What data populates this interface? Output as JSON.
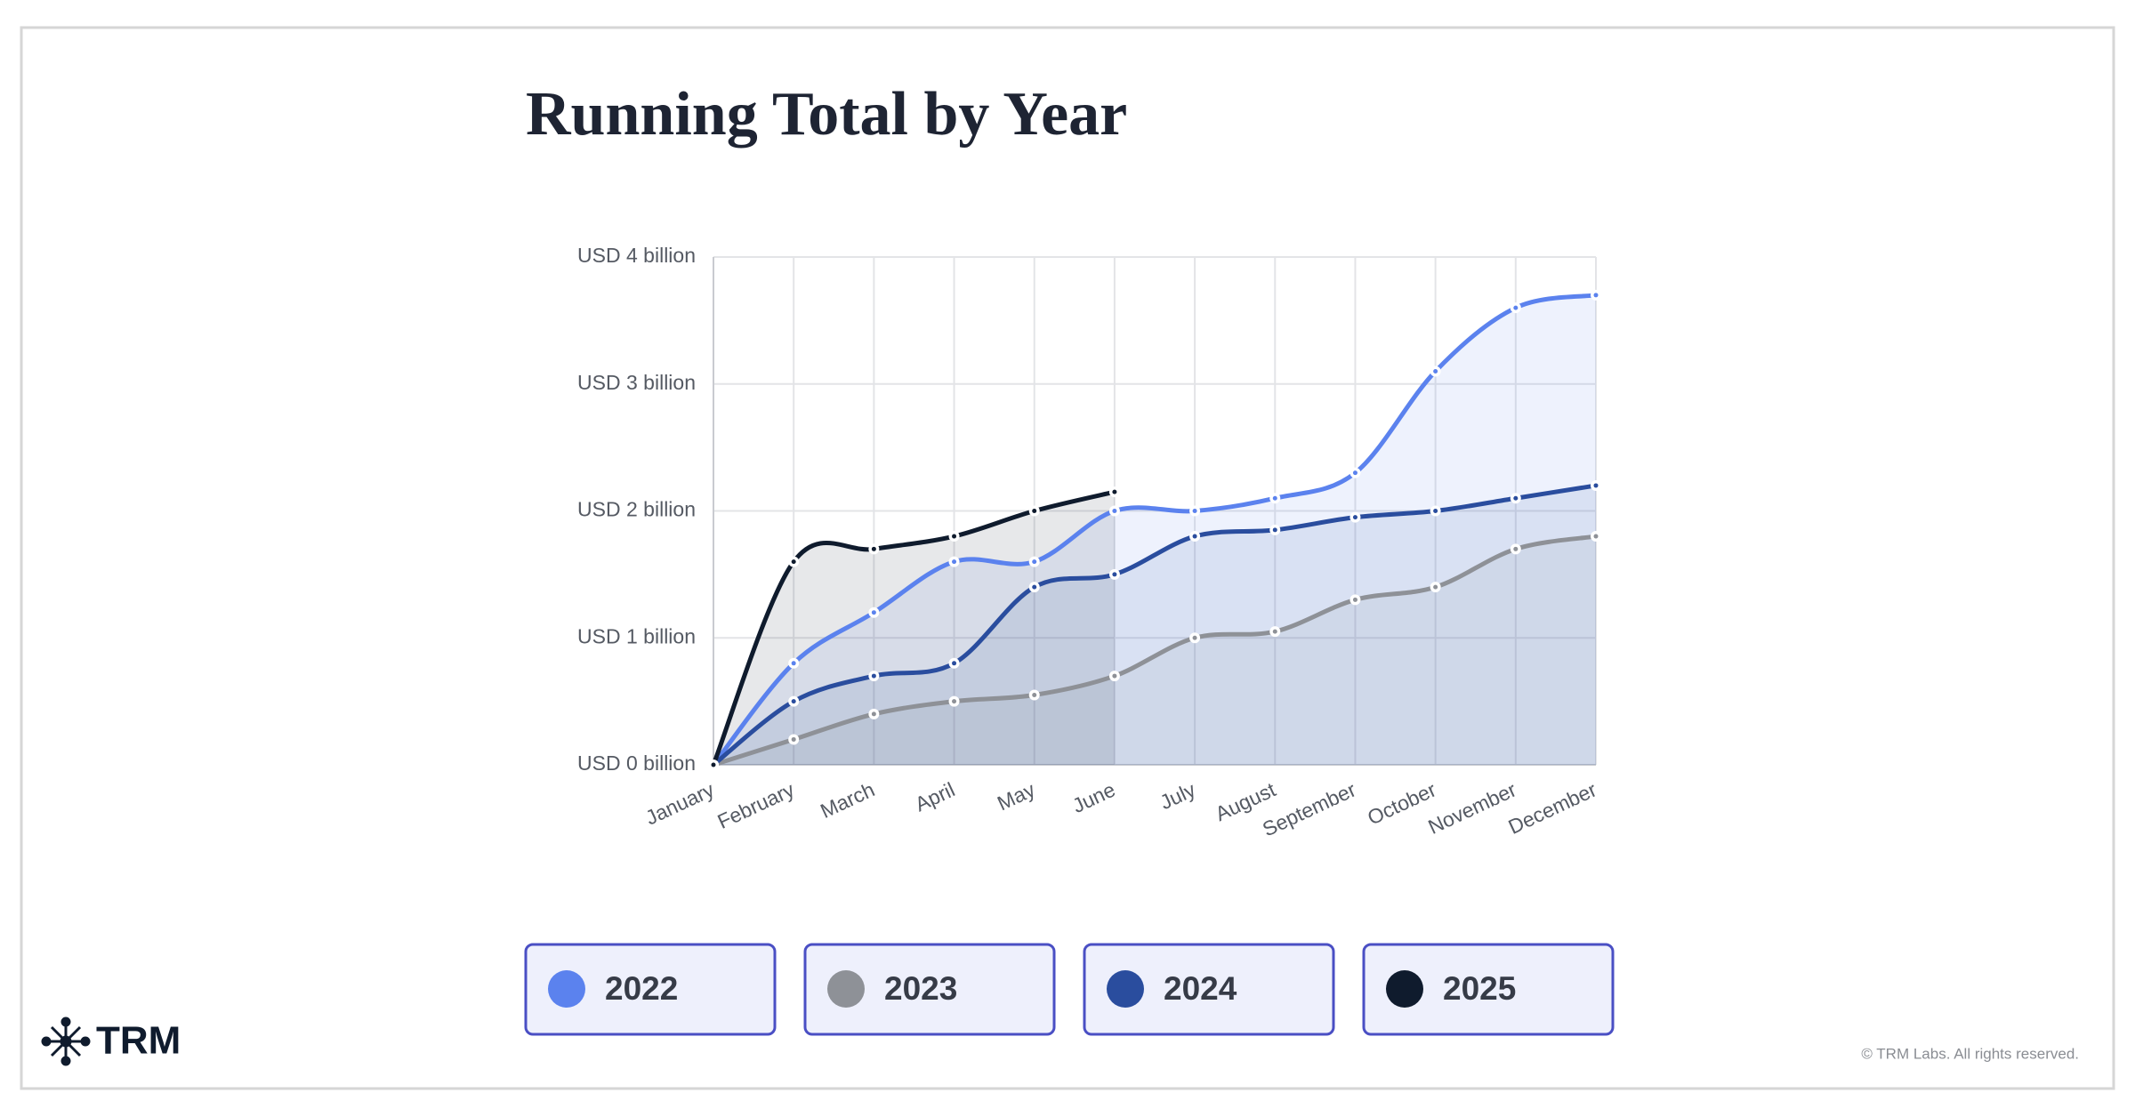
{
  "chart_data": {
    "type": "line",
    "title": "Running Total by Year",
    "categories": [
      "January",
      "February",
      "March",
      "April",
      "May",
      "June",
      "July",
      "August",
      "September",
      "October",
      "November",
      "December"
    ],
    "series": [
      {
        "name": "2022",
        "color": "#5b82ee",
        "values": [
          0,
          0.8,
          1.2,
          1.6,
          1.6,
          2.0,
          2.0,
          2.1,
          2.3,
          3.1,
          3.6,
          3.7
        ]
      },
      {
        "name": "2023",
        "color": "#8e9197",
        "values": [
          0,
          0.2,
          0.4,
          0.5,
          0.55,
          0.7,
          1.0,
          1.05,
          1.3,
          1.4,
          1.7,
          1.8
        ]
      },
      {
        "name": "2024",
        "color": "#2a4d9e",
        "values": [
          0,
          0.5,
          0.7,
          0.8,
          1.4,
          1.5,
          1.8,
          1.85,
          1.95,
          2.0,
          2.1,
          2.2
        ]
      },
      {
        "name": "2025",
        "color": "#0f1b2d",
        "values": [
          0,
          1.6,
          1.7,
          1.8,
          2.0,
          2.15,
          null,
          null,
          null,
          null,
          null,
          null
        ]
      }
    ],
    "ylim": [
      0,
      4
    ],
    "yticks": [
      {
        "value": 0,
        "label": "USD 0 billion"
      },
      {
        "value": 1,
        "label": "USD 1 billion"
      },
      {
        "value": 2,
        "label": "USD 2 billion"
      },
      {
        "value": 3,
        "label": "USD 3 billion"
      },
      {
        "value": 4,
        "label": "USD 4 billion"
      }
    ],
    "grid": true
  },
  "logo": "TRM",
  "footer": "© TRM Labs. All rights reserved."
}
